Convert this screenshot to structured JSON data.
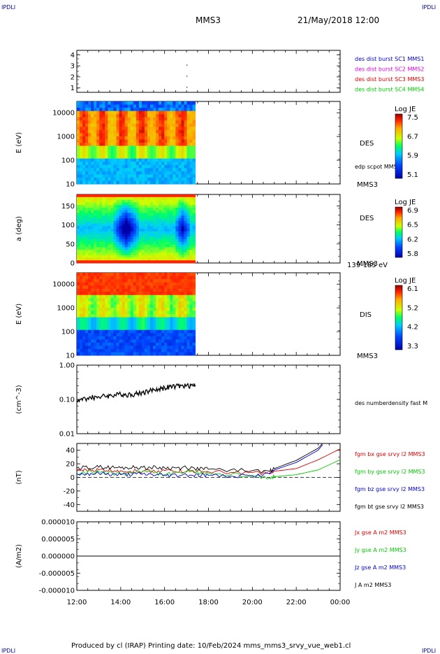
{
  "header": {
    "corner_label": "IPDLI",
    "spacecraft": "MMS3",
    "datetime": "21/May/2018 12:00"
  },
  "footer": {
    "text": "Produced by cl (IRAP)   Printing date: 10/Feb/2024   mms_mms3_srvy_vue_web1.cl"
  },
  "time_axis": {
    "ticks": [
      "12:00",
      "14:00",
      "16:00",
      "18:00",
      "20:00",
      "22:00",
      "00:00"
    ],
    "range_hours": [
      12,
      24
    ],
    "data_end_hour": 17.4
  },
  "colors": {
    "red": "#dd0000",
    "green": "#00cc00",
    "blue": "#0000cc",
    "magenta": "#dd00dd",
    "black": "#000000"
  },
  "chart_data": [
    {
      "type": "scatter",
      "ylabel": "",
      "yticks": [
        "1",
        "2",
        "3",
        "4"
      ],
      "ylim": [
        0.6,
        4.4
      ],
      "legend": [
        {
          "text": "des dist burst SC1 MMS1",
          "color": "#0000cc"
        },
        {
          "text": "des dist burst SC2 MMS2",
          "color": "#dd00dd"
        },
        {
          "text": "des dist burst SC3 MMS3",
          "color": "#dd0000"
        },
        {
          "text": "des dist burst SC4 MMS4",
          "color": "#00cc00"
        }
      ],
      "points": [
        {
          "x": 17.0,
          "y": 3.1
        },
        {
          "x": 17.0,
          "y": 2.1
        },
        {
          "x": 17.0,
          "y": 1.1
        }
      ]
    },
    {
      "type": "heatmap",
      "ylabel": "E (eV)",
      "yticks": [
        "10",
        "100",
        "1000",
        "10000"
      ],
      "yscale": "log",
      "ylim": [
        10,
        30000
      ],
      "side_label": "DES",
      "side_sub": "MMS3",
      "extra_label": "edp scpot MMS3",
      "colorbar": {
        "title": "Log JE",
        "ticks": [
          "7.5",
          "6.7",
          "5.9",
          "5.1"
        ]
      }
    },
    {
      "type": "heatmap",
      "ylabel": "a (deg)",
      "yticks": [
        "0",
        "50",
        "100",
        "150"
      ],
      "ylim": [
        0,
        180
      ],
      "side_label": "DES",
      "side_sub": "MMS3",
      "extra_label": "139-185 eV",
      "colorbar": {
        "title": "Log JE",
        "ticks": [
          "6.9",
          "6.5",
          "6.2",
          "5.8"
        ]
      }
    },
    {
      "type": "heatmap",
      "ylabel": "E (eV)",
      "yticks": [
        "10",
        "100",
        "1000",
        "10000"
      ],
      "yscale": "log",
      "ylim": [
        10,
        30000
      ],
      "side_label": "DIS",
      "side_sub": "MMS3",
      "colorbar": {
        "title": "Log JE",
        "ticks": [
          "6.1",
          "5.2",
          "4.2",
          "3.3"
        ]
      }
    },
    {
      "type": "line",
      "ylabel": "(cm^-3)",
      "yticks": [
        "0.01",
        "0.10",
        "1.00"
      ],
      "yscale": "log",
      "ylim": [
        0.01,
        1.0
      ],
      "legend": [
        {
          "text": "des numberdensity fast M",
          "color": "#000000"
        }
      ],
      "series": [
        {
          "x": [
            12.0,
            12.5,
            13.0,
            13.5,
            14.0,
            14.5,
            15.0,
            15.5,
            16.0,
            16.5,
            17.0,
            17.4
          ],
          "y": [
            0.09,
            0.11,
            0.12,
            0.13,
            0.14,
            0.14,
            0.16,
            0.19,
            0.22,
            0.24,
            0.25,
            0.27
          ]
        }
      ]
    },
    {
      "type": "line",
      "ylabel": "(nT)",
      "yticks": [
        "-40",
        "-20",
        "0",
        "20",
        "40"
      ],
      "ylim": [
        -50,
        50
      ],
      "legend": [
        {
          "text": "fgm bx gse srvy l2 MMS3",
          "color": "#dd0000"
        },
        {
          "text": "fgm by gse srvy l2 MMS3",
          "color": "#00cc00"
        },
        {
          "text": "fgm bz gse srvy l2 MMS3",
          "color": "#0000cc"
        },
        {
          "text": "fgm bt gse srvy l2 MMS3",
          "color": "#000000"
        }
      ],
      "series": [
        {
          "color": "#dd0000",
          "x": [
            12,
            13,
            14,
            15,
            16,
            17,
            18,
            19,
            20,
            20.8,
            21,
            22,
            23,
            24
          ],
          "y": [
            10,
            11,
            10,
            9,
            10,
            9,
            8,
            7,
            7,
            6,
            9,
            13,
            26,
            42
          ]
        },
        {
          "color": "#00cc00",
          "x": [
            12,
            13,
            14,
            15,
            16,
            17,
            18,
            19,
            20,
            20.8,
            21,
            22,
            23,
            24
          ],
          "y": [
            6,
            8,
            5,
            9,
            4,
            8,
            6,
            4,
            3,
            -1,
            1,
            4,
            11,
            26
          ]
        },
        {
          "color": "#0000cc",
          "x": [
            12,
            13,
            14,
            15,
            16,
            17,
            18,
            19,
            20,
            20.8,
            21,
            22,
            23,
            23.2
          ],
          "y": [
            5,
            6,
            4,
            5,
            3,
            4,
            3,
            2,
            2,
            5,
            11,
            22,
            40,
            48
          ]
        },
        {
          "color": "#000000",
          "x": [
            12,
            13,
            14,
            15,
            16,
            17,
            18,
            19,
            20,
            20.8,
            21,
            22,
            23,
            23.2
          ],
          "y": [
            14,
            15,
            14,
            15,
            14,
            14,
            12,
            11,
            10,
            9,
            13,
            25,
            43,
            50
          ]
        }
      ]
    },
    {
      "type": "line",
      "ylabel": "(A/m2)",
      "yticks": [
        "-0.000010",
        "-0.000005",
        "0.000000",
        "0.000005",
        "0.000010"
      ],
      "ylim": [
        -1e-05,
        1e-05
      ],
      "legend": [
        {
          "text": "Jx gse A m2 MMS3",
          "color": "#dd0000"
        },
        {
          "text": "Jy gse A m2 MMS3",
          "color": "#00cc00"
        },
        {
          "text": "Jz gse A m2 MMS3",
          "color": "#0000cc"
        },
        {
          "text": "J A m2 MMS3",
          "color": "#000000"
        }
      ],
      "series": [
        {
          "color": "#000000",
          "x": [
            12,
            24
          ],
          "y": [
            0,
            0
          ]
        }
      ]
    }
  ]
}
